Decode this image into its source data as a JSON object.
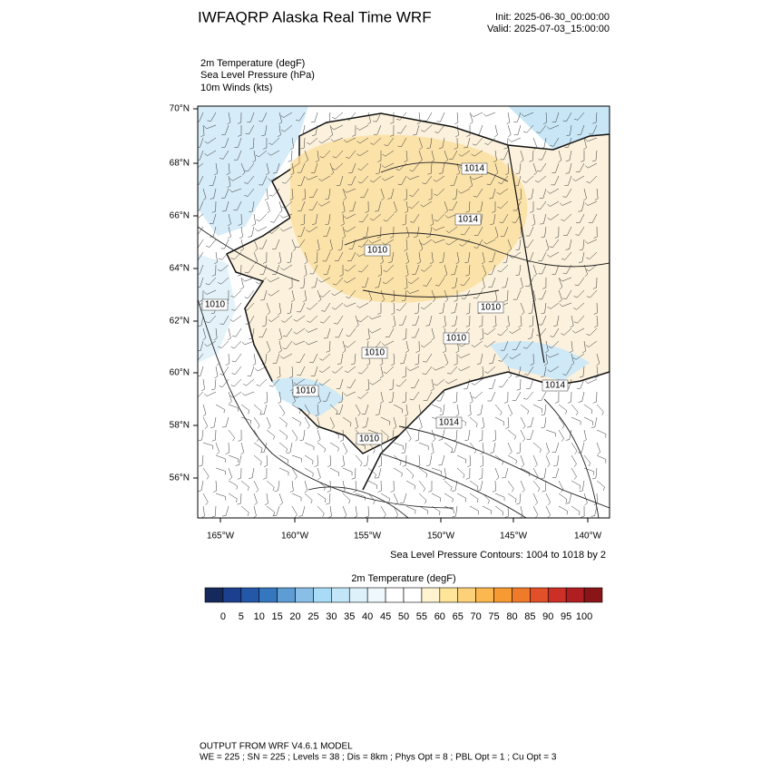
{
  "header": {
    "title": "IWFAQRP Alaska Real Time WRF",
    "init": "Init: 2025-06-30_00:00:00",
    "valid": "Valid: 2025-07-03_15:00:00"
  },
  "fields": [
    "2m Temperature   (degF)",
    "Sea Level Pressure   (hPa)",
    "10m Winds   (kts)"
  ],
  "map": {
    "lat_labels": [
      "70°N",
      "68°N",
      "66°N",
      "64°N",
      "62°N",
      "60°N",
      "58°N",
      "56°N"
    ],
    "lon_labels": [
      "165°W",
      "160°W",
      "155°W",
      "150°W",
      "145°W",
      "140°W"
    ],
    "contour_labels": [
      "1014",
      "1014",
      "1010",
      "1010",
      "1010",
      "1010",
      "1010",
      "1010",
      "1014",
      "1010",
      "1014"
    ],
    "contour_note": "Sea Level Pressure Contours: 1004 to 1018 by 2"
  },
  "colorbar": {
    "title": "2m Temperature  (degF)",
    "colors": [
      "#16295c",
      "#1c3f8f",
      "#2357a8",
      "#3577bf",
      "#5d9dd4",
      "#89bfe6",
      "#a8dbf5",
      "#c2e6f7",
      "#ddf1fb",
      "#eef8fd",
      "#ffffff",
      "#ffffff",
      "#fff3d0",
      "#ffe59a",
      "#fdd17a",
      "#fbb84e",
      "#f79a34",
      "#ef7a2a",
      "#e2502a",
      "#cc2f26",
      "#b01e22",
      "#8a1519"
    ],
    "labels": [
      0,
      5,
      10,
      15,
      20,
      25,
      30,
      35,
      40,
      45,
      50,
      55,
      60,
      65,
      70,
      75,
      80,
      85,
      90,
      95,
      100
    ]
  },
  "footer": [
    "OUTPUT FROM WRF V4.6.1 MODEL",
    "WE = 225 ; SN = 225 ; Levels = 38 ; Dis = 8km ; Phys Opt = 8 ; PBL Opt = 1 ; Cu Opt = 3"
  ]
}
